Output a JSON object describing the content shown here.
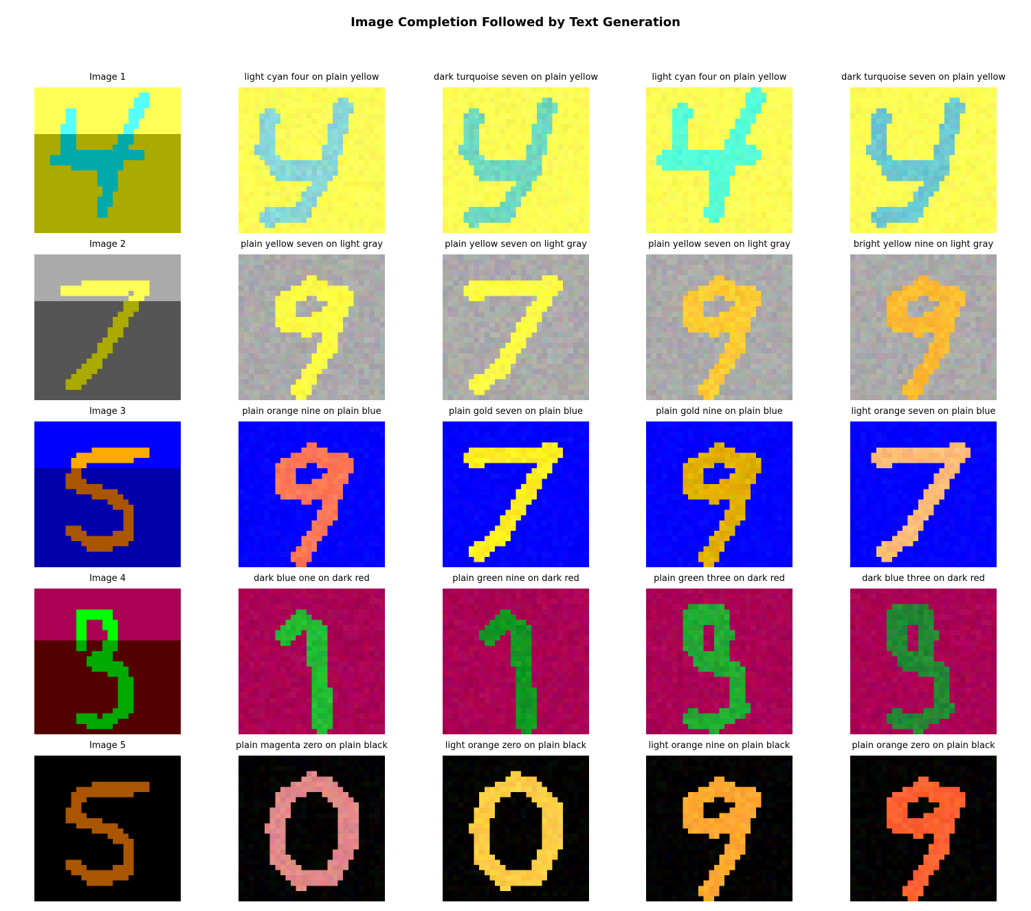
{
  "title": "Image Completion Followed by Text Generation",
  "rows": [
    {
      "input": {
        "label": "Image 1",
        "digit": "4",
        "background": "#ffff55",
        "background_lower": "#aaaa00",
        "digit_color": "#00aaaa",
        "digit_color_upper": "#55ffff"
      },
      "outputs": [
        {
          "label": "light cyan four on plain yellow",
          "digit": "4y",
          "background": "#ffff55",
          "digit_color": "#88d6d8"
        },
        {
          "label": "dark turquoise seven on plain yellow",
          "digit": "4y",
          "background": "#ffff55",
          "digit_color": "#6fd8bf"
        },
        {
          "label": "light cyan four on plain yellow",
          "digit": "4",
          "background": "#ffff55",
          "digit_color": "#55ffd8"
        },
        {
          "label": "dark turquoise seven on plain yellow",
          "digit": "4y",
          "background": "#ffff55",
          "digit_color": "#6cc8d0"
        }
      ]
    },
    {
      "input": {
        "label": "Image 2",
        "digit": "7",
        "background": "#aaaaaa",
        "background_lower": "#555555",
        "digit_color": "#aaaa00",
        "digit_color_upper": "#ffff55"
      },
      "outputs": [
        {
          "label": "plain yellow seven on light gray",
          "digit": "9",
          "background": "#aaaaaa",
          "digit_color": "#ffff44"
        },
        {
          "label": "plain yellow seven on light gray",
          "digit": "7",
          "background": "#aaaaaa",
          "digit_color": "#ffff44"
        },
        {
          "label": "plain yellow seven on light gray",
          "digit": "9",
          "background": "#aaaaaa",
          "digit_color": "#ffcc33"
        },
        {
          "label": "bright yellow nine on light gray",
          "digit": "9",
          "background": "#aaaaaa",
          "digit_color": "#ffbb33"
        }
      ]
    },
    {
      "input": {
        "label": "Image 3",
        "digit": "5",
        "background": "#0000ff",
        "background_lower": "#0000aa",
        "digit_color": "#aa5500",
        "digit_color_upper": "#ffaa00"
      },
      "outputs": [
        {
          "label": "plain orange nine on plain blue",
          "digit": "9",
          "background": "#0000ff",
          "digit_color": "#ff7755"
        },
        {
          "label": "plain gold seven on plain blue",
          "digit": "7",
          "background": "#0000ff",
          "digit_color": "#ffee22"
        },
        {
          "label": "plain gold nine on plain blue",
          "digit": "9",
          "background": "#0000ff",
          "digit_color": "#e0b000"
        },
        {
          "label": "light orange seven on plain blue",
          "digit": "7",
          "background": "#0000ff",
          "digit_color": "#ffbb77"
        }
      ]
    },
    {
      "input": {
        "label": "Image 4",
        "digit": "3",
        "background": "#aa0055",
        "background_lower": "#550000",
        "digit_color": "#00aa00",
        "digit_color_upper": "#00ff00"
      },
      "outputs": [
        {
          "label": "dark blue one on dark red",
          "digit": "1",
          "background": "#aa0055",
          "digit_color": "#22bb33"
        },
        {
          "label": "plain green nine on dark red",
          "digit": "1",
          "background": "#aa0055",
          "digit_color": "#119922"
        },
        {
          "label": "plain green three on dark red",
          "digit": "3",
          "background": "#aa0055",
          "digit_color": "#22aa33"
        },
        {
          "label": "dark blue three on dark red",
          "digit": "3",
          "background": "#aa0055",
          "digit_color": "#228833"
        }
      ]
    },
    {
      "input": {
        "label": "Image 5",
        "digit": "5",
        "background": "#000000",
        "background_lower": "#000000",
        "digit_color": "#aa5500",
        "digit_color_upper": "#ffaa55"
      },
      "outputs": [
        {
          "label": "plain magenta zero on plain black",
          "digit": "0",
          "background": "#000000",
          "digit_color": "#e08888"
        },
        {
          "label": "light orange zero on plain black",
          "digit": "0",
          "background": "#000000",
          "digit_color": "#ffcc44"
        },
        {
          "label": "light orange nine on plain black",
          "digit": "9",
          "background": "#000000",
          "digit_color": "#ffa830"
        },
        {
          "label": "plain orange zero on plain black",
          "digit": "9",
          "background": "#000000",
          "digit_color": "#ff6030"
        }
      ]
    }
  ]
}
